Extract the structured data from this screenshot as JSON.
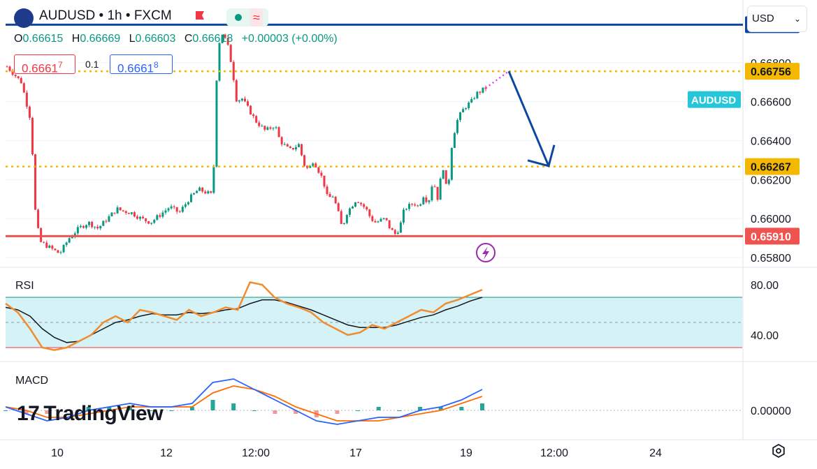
{
  "header": {
    "symbol": "AUDUSD",
    "sep1": "•",
    "interval": "1h",
    "sep2": "•",
    "exchange": "FXCM",
    "ohlc": {
      "o_label": "O",
      "o": "0.66615",
      "h_label": "H",
      "h": "0.66669",
      "l_label": "L",
      "l": "0.66603",
      "c_label": "C",
      "c": "0.66618",
      "change": "+0.00003 (+0.00%)"
    },
    "sell_price_main": "0.6661",
    "sell_price_sup": "7",
    "spread": "0.1",
    "buy_price_main": "0.6661",
    "buy_price_sup": "8"
  },
  "currency_select": {
    "value": "USD"
  },
  "watermark": "TradingView",
  "colors": {
    "up": "#089981",
    "down": "#f23645",
    "resistance": "#0d47a1",
    "level": "#f5b800",
    "support": "#ef5350",
    "rsi": "#f08c2e",
    "macd": "#2962ff",
    "signal": "#ff6d00"
  },
  "icons": {
    "flag": "flag-icon",
    "settings": "gear-icon",
    "lightning": "lightning-icon",
    "logo": "tradingview-logo-icon"
  },
  "chart_data": [
    {
      "type": "candlestick",
      "name": "AUDUSD",
      "ylim": [
        0.6575,
        0.6705
      ],
      "y_ticks": [
        "0.66800",
        "0.66600",
        "0.66400",
        "0.66200",
        "0.66000",
        "0.65800"
      ],
      "x_ticks": [
        "10",
        "12",
        "12:00",
        "17",
        "19",
        "12:00",
        "24"
      ],
      "x_tick_pos": [
        0,
        1,
        2,
        3,
        4,
        5,
        6
      ],
      "close_path": [
        [
          0.0,
          0.6678
        ],
        [
          0.03,
          0.667
        ],
        [
          0.05,
          0.665
        ],
        [
          0.06,
          0.66
        ],
        [
          0.07,
          0.6588
        ],
        [
          0.09,
          0.6585
        ],
        [
          0.11,
          0.6582
        ],
        [
          0.13,
          0.659
        ],
        [
          0.15,
          0.6595
        ],
        [
          0.17,
          0.6598
        ],
        [
          0.19,
          0.6595
        ],
        [
          0.21,
          0.66
        ],
        [
          0.23,
          0.6605
        ],
        [
          0.24,
          0.6604
        ],
        [
          0.26,
          0.6603
        ],
        [
          0.28,
          0.66
        ],
        [
          0.3,
          0.6598
        ],
        [
          0.32,
          0.6602
        ],
        [
          0.34,
          0.6606
        ],
        [
          0.36,
          0.6603
        ],
        [
          0.38,
          0.661
        ],
        [
          0.4,
          0.6615
        ],
        [
          0.42,
          0.6613
        ],
        [
          0.43,
          0.6612
        ],
        [
          0.44,
          0.6688
        ],
        [
          0.45,
          0.6695
        ],
        [
          0.46,
          0.669
        ],
        [
          0.47,
          0.6678
        ],
        [
          0.48,
          0.666
        ],
        [
          0.49,
          0.6662
        ],
        [
          0.5,
          0.6658
        ],
        [
          0.52,
          0.665
        ],
        [
          0.54,
          0.6645
        ],
        [
          0.56,
          0.6648
        ],
        [
          0.57,
          0.664
        ],
        [
          0.59,
          0.6635
        ],
        [
          0.61,
          0.6638
        ],
        [
          0.62,
          0.6628
        ],
        [
          0.63,
          0.6625
        ],
        [
          0.64,
          0.663
        ],
        [
          0.66,
          0.662
        ],
        [
          0.67,
          0.661
        ],
        [
          0.68,
          0.6612
        ],
        [
          0.69,
          0.6605
        ],
        [
          0.7,
          0.6595
        ],
        [
          0.71,
          0.6603
        ],
        [
          0.73,
          0.661
        ],
        [
          0.75,
          0.6605
        ],
        [
          0.76,
          0.66
        ],
        [
          0.77,
          0.6598
        ],
        [
          0.79,
          0.66
        ],
        [
          0.8,
          0.6595
        ],
        [
          0.81,
          0.6592
        ],
        [
          0.82,
          0.6595
        ],
        [
          0.83,
          0.6605
        ],
        [
          0.85,
          0.6608
        ],
        [
          0.86,
          0.6606
        ],
        [
          0.87,
          0.6612
        ],
        [
          0.88,
          0.6608
        ],
        [
          0.89,
          0.662
        ],
        [
          0.9,
          0.661
        ],
        [
          0.91,
          0.6628
        ],
        [
          0.92,
          0.6612
        ],
        [
          0.93,
          0.664
        ],
        [
          0.94,
          0.665
        ],
        [
          0.95,
          0.6655
        ],
        [
          0.96,
          0.6658
        ],
        [
          0.97,
          0.666
        ],
        [
          0.98,
          0.6664
        ],
        [
          1.0,
          0.6667
        ]
      ],
      "levels": [
        {
          "value": 0.66995,
          "label": "0.66995",
          "style": "solid",
          "color": "#0d47a1"
        },
        {
          "value": 0.66756,
          "label": "0.66756",
          "style": "dotted",
          "color": "#f5b800"
        },
        {
          "value": 0.66267,
          "label": "0.66267",
          "style": "dotted",
          "color": "#f5b800"
        },
        {
          "value": 0.6591,
          "label": "0.65910",
          "style": "solid",
          "color": "#ef5350"
        }
      ],
      "current_label": "AUDUSD",
      "current_value": 0.66618,
      "projection": [
        [
          0.6667,
          0.6673
        ],
        [
          0.66756,
          0.6627
        ]
      ]
    },
    {
      "type": "line",
      "name": "RSI",
      "ylim": [
        20,
        90
      ],
      "y_ticks": [
        "80.00",
        "40.00"
      ],
      "band": [
        30,
        70
      ],
      "series_rsi": [
        65,
        58,
        45,
        30,
        28,
        30,
        35,
        40,
        50,
        55,
        50,
        60,
        58,
        55,
        52,
        60,
        55,
        58,
        62,
        60,
        82,
        80,
        70,
        65,
        62,
        58,
        50,
        45,
        40,
        42,
        48,
        45,
        50,
        55,
        60,
        58,
        65,
        68,
        72,
        76
      ],
      "series_ma": [
        62,
        60,
        55,
        45,
        38,
        34,
        35,
        40,
        45,
        50,
        52,
        55,
        57,
        56,
        56,
        58,
        57,
        58,
        60,
        61,
        65,
        68,
        68,
        66,
        63,
        60,
        56,
        52,
        48,
        46,
        46,
        46,
        48,
        51,
        54,
        56,
        60,
        63,
        67,
        70
      ]
    },
    {
      "type": "line",
      "name": "MACD",
      "ylim": [
        -0.0008,
        0.0012
      ],
      "y_ticks": [
        "0.00000"
      ],
      "series_macd": [
        0.0001,
        -0.0001,
        -0.0003,
        -0.0002,
        0.0,
        0.0001,
        0.0002,
        0.0001,
        0.0001,
        0.0002,
        0.0008,
        0.0009,
        0.0006,
        0.0003,
        0.0,
        -0.0003,
        -0.0004,
        -0.0003,
        -0.0002,
        -0.0002,
        0.0,
        0.0001,
        0.0003,
        0.0006
      ],
      "series_signal": [
        0.0001,
        0.0,
        -0.0002,
        -0.0002,
        -0.0001,
        0.0,
        0.0001,
        0.0001,
        0.0001,
        0.0001,
        0.0005,
        0.0007,
        0.0006,
        0.0004,
        0.0001,
        -0.0001,
        -0.0003,
        -0.0003,
        -0.0003,
        -0.0002,
        -0.0001,
        0.0,
        0.0002,
        0.0004
      ]
    }
  ]
}
